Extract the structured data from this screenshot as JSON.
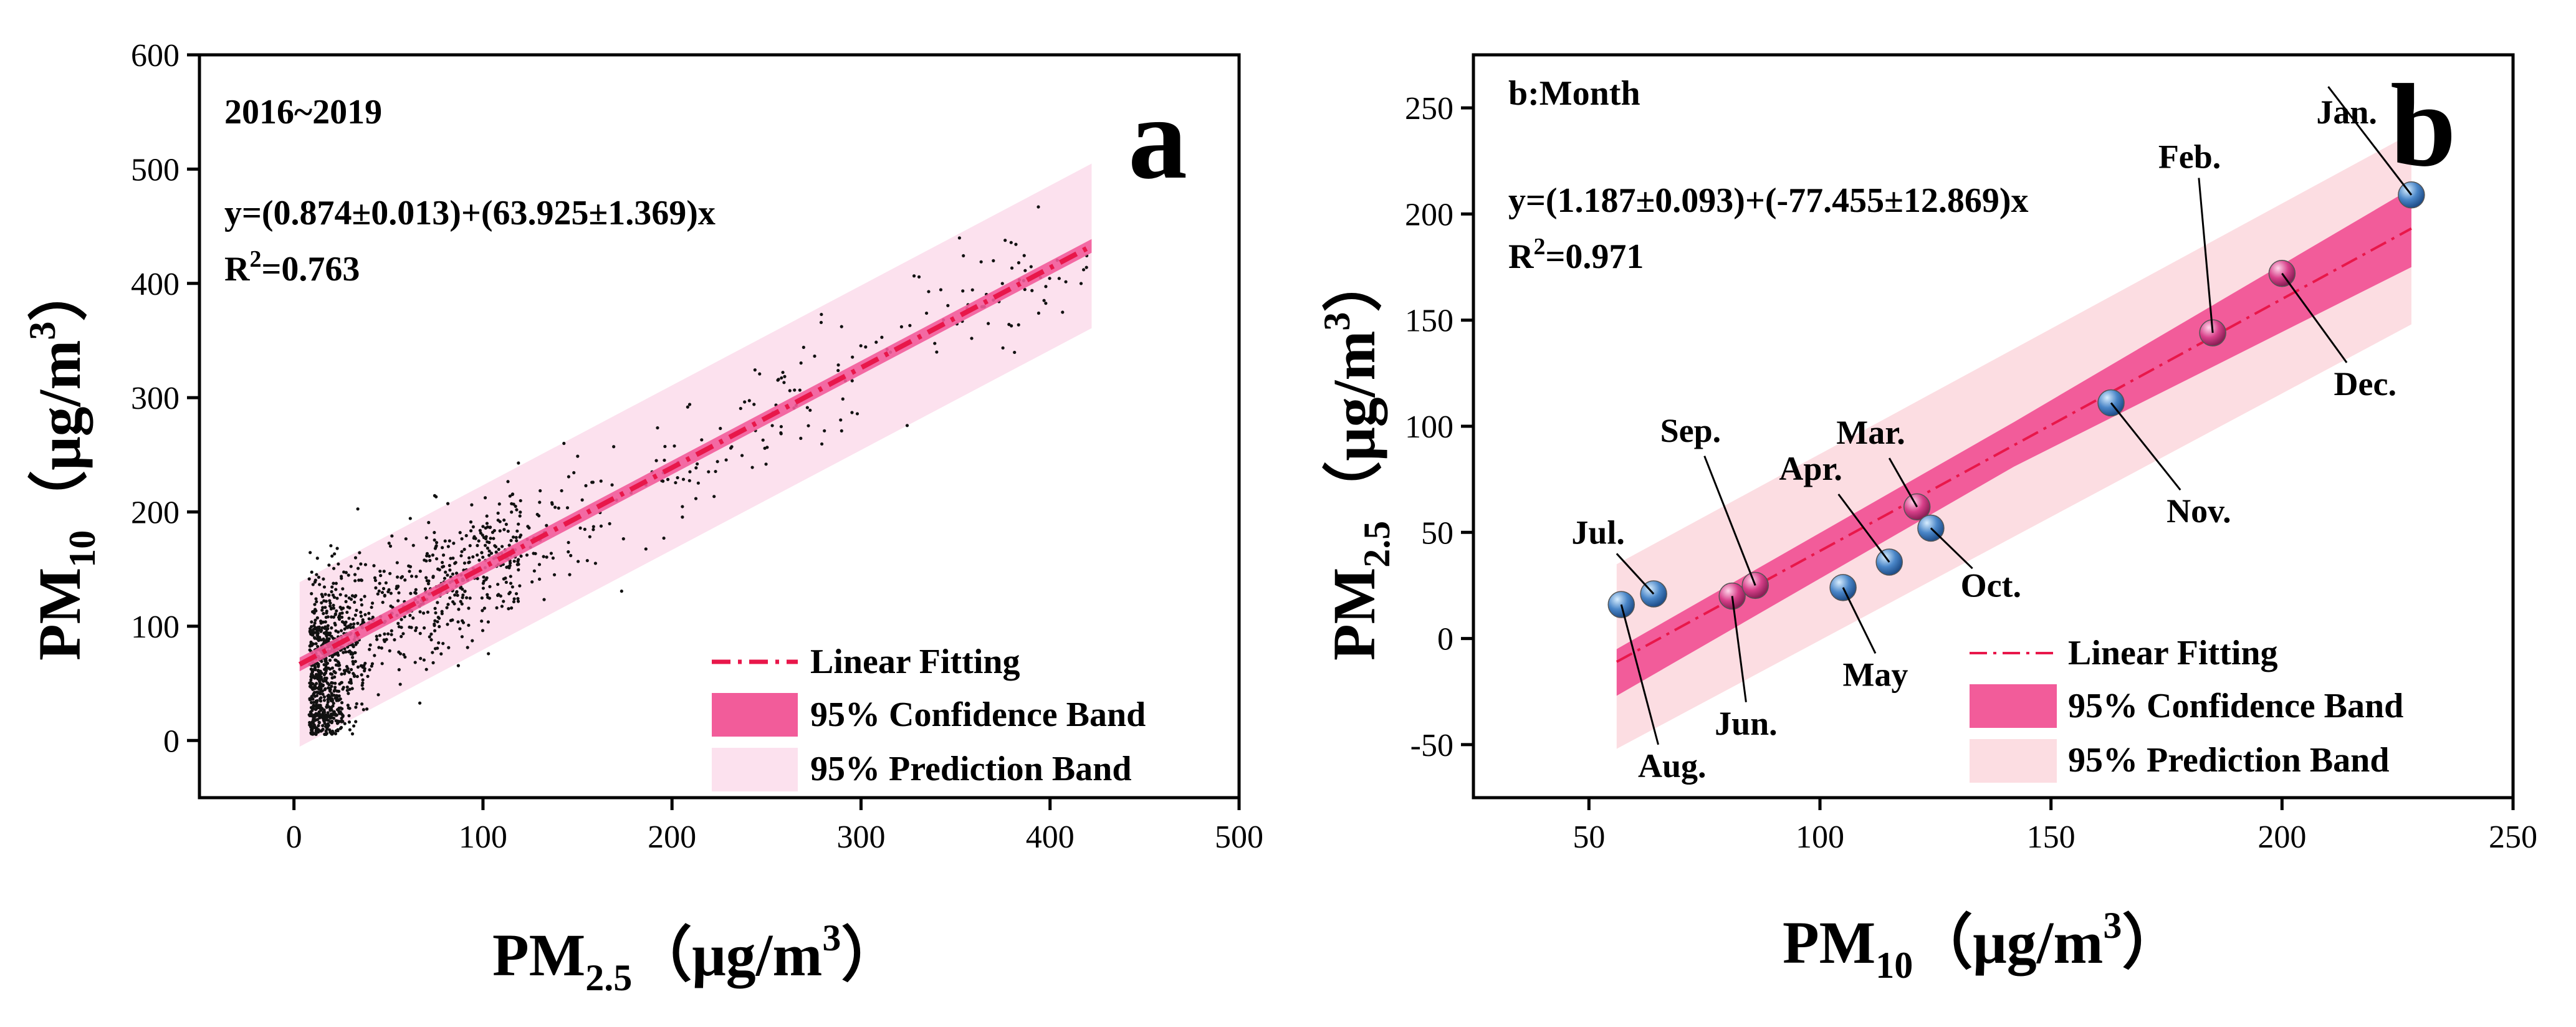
{
  "colors": {
    "fit_line": "#E8174A",
    "confidence_band": "#F25C9A",
    "prediction_band_a": "#FCE1EE",
    "prediction_band_b": "#FCDDE2",
    "point_a": "#111111",
    "point_b_blue": "#4A86C8",
    "point_b_pink": "#D8408A"
  },
  "chart_data": [
    {
      "type": "scatter",
      "panel_letter": "a",
      "period": "2016~2019",
      "equation": "y=(0.874±0.013)+(63.925±1.369)x",
      "r2_prefix": "R",
      "r2_sup": "2",
      "r2_value": "=0.763",
      "xlabel": {
        "main": "PM",
        "sub": "2.5",
        "unit_open": "（μg/m",
        "unit_sup": "3",
        "unit_close": "）"
      },
      "ylabel": {
        "main": "PM",
        "sub": "10",
        "unit_open": "（μg/m",
        "unit_sup": "3",
        "unit_close": "）"
      },
      "xlim": [
        -50,
        500
      ],
      "ylim": [
        -50,
        600
      ],
      "xticks": [
        0,
        100,
        200,
        300,
        400,
        500
      ],
      "yticks": [
        0,
        100,
        200,
        300,
        400,
        500,
        600
      ],
      "fit": {
        "x_range": [
          3,
          422
        ],
        "y0": 64,
        "slope": 0.874
      },
      "confidence_halfwidth": 6,
      "prediction_halfwidth": 72,
      "point_cloud": {
        "n": 1450,
        "seed": 7,
        "x_min": 3,
        "x_max": 420
      },
      "legend": {
        "fit": "Linear Fitting",
        "confidence": "95% Confidence Band",
        "prediction": "95% Prediction   Band",
        "position": "bottom-right"
      }
    },
    {
      "type": "scatter",
      "panel_letter": "b",
      "period": "b:Month",
      "equation": "y=(1.187±0.093)+(-77.455±12.869)x",
      "r2_prefix": "R",
      "r2_sup": "2",
      "r2_value": "=0.971",
      "xlabel": {
        "main": "PM",
        "sub": "10",
        "unit_open": "（μg/m",
        "unit_sup": "3",
        "unit_close": "）"
      },
      "ylabel": {
        "main": "PM",
        "sub": "2.5",
        "unit_open": "（μg/m",
        "unit_sup": "3",
        "unit_close": "）"
      },
      "xlim": [
        25,
        250
      ],
      "ylim": [
        -75,
        275
      ],
      "xticks": [
        50,
        100,
        150,
        200,
        250
      ],
      "yticks": [
        -50,
        0,
        50,
        100,
        150,
        200,
        250
      ],
      "fit": {
        "x_range": [
          56,
          228
        ],
        "slope": 1.187,
        "intercept": -77.455
      },
      "confidence_band": {
        "x": [
          56,
          142,
          228
        ],
        "upper": [
          -5,
          102,
          212
        ],
        "lower": [
          -27,
          81,
          175
        ]
      },
      "prediction_band": {
        "x": [
          56,
          228
        ],
        "upper": [
          35,
          238
        ],
        "lower": [
          -52,
          148
        ]
      },
      "points": [
        {
          "month": "Jan.",
          "x": 228,
          "y": 209,
          "color": "blue"
        },
        {
          "month": "Feb.",
          "x": 185,
          "y": 144,
          "color": "pink"
        },
        {
          "month": "Mar.",
          "x": 121,
          "y": 62,
          "color": "pink"
        },
        {
          "month": "Apr.",
          "x": 115,
          "y": 36,
          "color": "blue"
        },
        {
          "month": "May",
          "x": 105,
          "y": 24,
          "color": "blue"
        },
        {
          "month": "Jun.",
          "x": 81,
          "y": 20,
          "color": "pink"
        },
        {
          "month": "Jul.",
          "x": 64,
          "y": 21,
          "color": "blue"
        },
        {
          "month": "Aug.",
          "x": 57,
          "y": 16,
          "color": "blue"
        },
        {
          "month": "Sep.",
          "x": 86,
          "y": 25,
          "color": "pink"
        },
        {
          "month": "Oct.",
          "x": 124,
          "y": 52,
          "color": "blue"
        },
        {
          "month": "Nov.",
          "x": 163,
          "y": 111,
          "color": "blue"
        },
        {
          "month": "Dec.",
          "x": 200,
          "y": 172,
          "color": "pink"
        }
      ],
      "legend": {
        "fit": "Linear Fitting",
        "confidence": "95% Confidence Band",
        "prediction": "95% Prediction   Band",
        "position": "bottom-right"
      }
    }
  ]
}
